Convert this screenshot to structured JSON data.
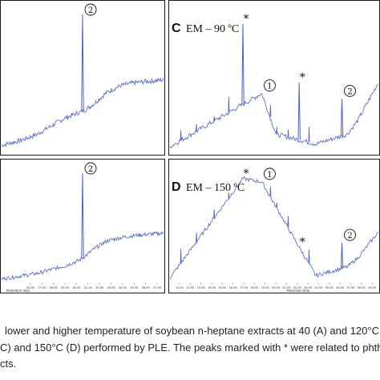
{
  "caption": {
    "line1": "lower and higher temperature of soybean n-heptane extracts at 40 (A) and 120°C",
    "line2": "C) and 150°C (D) performed by PLE. The peaks marked with * were related to phth",
    "line3": "cts."
  },
  "chart_data": [
    {
      "type": "line",
      "panel": "B (partial)",
      "title": "",
      "annotations": [
        {
          "label": "②",
          "x": 26.5
        }
      ],
      "xlabel": "",
      "xlim": [
        15,
        38
      ],
      "series": [
        {
          "points": [
            [
              15,
              0.04
            ],
            [
              18,
              0.08
            ],
            [
              20,
              0.12
            ],
            [
              22,
              0.18
            ],
            [
              24,
              0.24
            ],
            [
              26,
              0.28
            ],
            [
              26.5,
              1.0
            ],
            [
              26.9,
              0.3
            ],
            [
              28,
              0.34
            ],
            [
              30,
              0.43
            ],
            [
              32,
              0.48
            ],
            [
              34,
              0.5
            ],
            [
              36,
              0.51
            ],
            [
              38,
              0.52
            ]
          ]
        }
      ]
    },
    {
      "type": "line",
      "panel": "C",
      "title_letter": "C",
      "title": "EM – 90 ºC",
      "annotations": [
        {
          "label": "*",
          "x": 17.0
        },
        {
          "label": "①",
          "x": 18.8
        },
        {
          "label": "*",
          "x": 22.4
        },
        {
          "label": "②",
          "x": 26.5
        }
      ],
      "xlim": [
        10,
        30
      ],
      "series": [
        {
          "points": [
            [
              10,
              0.03
            ],
            [
              17.0,
              0.93
            ],
            [
              18.8,
              0.42
            ],
            [
              20.2,
              0.12
            ],
            [
              22.4,
              0.5
            ],
            [
              24,
              0.05
            ],
            [
              26.5,
              0.38
            ],
            [
              27,
              0.12
            ],
            [
              28,
              0.22
            ],
            [
              29,
              0.36
            ],
            [
              30,
              0.5
            ]
          ]
        }
      ]
    },
    {
      "type": "line",
      "panel": "A (partial)",
      "title": "",
      "annotations": [
        {
          "label": "②",
          "x": 26.5
        }
      ],
      "xlabel": "Retention time",
      "xlim": [
        15,
        38
      ],
      "x_ticks": [
        "26.00",
        "27.00",
        "28.00",
        "29.00",
        "30.00",
        "31.00",
        "32.00",
        "33.00",
        "34.00",
        "35.00",
        "36.00",
        "37.00"
      ],
      "series": [
        {
          "points": [
            [
              15,
              0.03
            ],
            [
              20,
              0.08
            ],
            [
              24,
              0.15
            ],
            [
              26,
              0.2
            ],
            [
              26.5,
              1.0
            ],
            [
              26.9,
              0.24
            ],
            [
              28,
              0.3
            ],
            [
              30,
              0.38
            ],
            [
              32,
              0.41
            ],
            [
              34,
              0.43
            ],
            [
              36,
              0.44
            ],
            [
              38,
              0.45
            ]
          ]
        }
      ]
    },
    {
      "type": "line",
      "panel": "D",
      "title_letter": "D",
      "title": "EM – 150 ºC",
      "annotations": [
        {
          "label": "*",
          "x": 17.0
        },
        {
          "label": "①",
          "x": 18.8
        },
        {
          "label": "*",
          "x": 22.4
        },
        {
          "label": "②",
          "x": 26.5
        }
      ],
      "xlabel": "Retention time",
      "xlim": [
        10,
        30
      ],
      "x_ticks": [
        "11.00",
        "12.00",
        "13.00",
        "14.00",
        "15.00",
        "16.00",
        "17.00",
        "18.00",
        "19.00",
        "20.00",
        "21.00",
        "22.00",
        "23.00",
        "24.00",
        "25.00",
        "26.00",
        "27.00",
        "28.00",
        "29.00"
      ],
      "series": [
        {
          "points": [
            [
              10,
              0.04
            ],
            [
              17.0,
              0.95
            ],
            [
              18.8,
              0.92
            ],
            [
              22.4,
              0.32
            ],
            [
              24,
              0.06
            ],
            [
              26.5,
              0.36
            ],
            [
              27,
              0.14
            ],
            [
              28,
              0.22
            ],
            [
              29,
              0.34
            ],
            [
              30,
              0.46
            ]
          ]
        }
      ]
    }
  ]
}
